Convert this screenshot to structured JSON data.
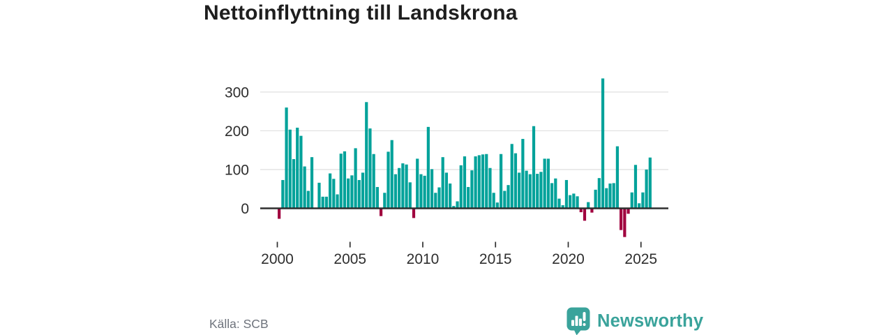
{
  "title": "Nettoinflyttning till Landskrona",
  "footer": {
    "source_label": "Källa: SCB",
    "logo_text": "Newsworthy"
  },
  "chart_data": {
    "type": "bar",
    "title": "Nettoinflyttning till Landskrona",
    "xlabel": "",
    "ylabel": "",
    "x_unit": "quarter",
    "start": {
      "year": 2000,
      "quarter": 1
    },
    "end": {
      "year": 2025,
      "quarter": 3
    },
    "values": [
      -27,
      73,
      260,
      203,
      127,
      208,
      187,
      108,
      45,
      132,
      0,
      66,
      30,
      30,
      90,
      76,
      36,
      141,
      147,
      77,
      85,
      155,
      73,
      92,
      274,
      206,
      140,
      55,
      -20,
      40,
      146,
      176,
      88,
      104,
      116,
      113,
      67,
      -25,
      128,
      88,
      84,
      210,
      101,
      40,
      54,
      132,
      92,
      64,
      6,
      18,
      111,
      134,
      55,
      98,
      134,
      137,
      139,
      140,
      104,
      40,
      15,
      140,
      45,
      60,
      166,
      142,
      92,
      179,
      97,
      88,
      212,
      89,
      94,
      128,
      128,
      65,
      77,
      25,
      8,
      73,
      34,
      38,
      31,
      -10,
      -32,
      16,
      -11,
      48,
      78,
      335,
      52,
      64,
      65,
      160,
      -56,
      -74,
      -14,
      41,
      112,
      13,
      41,
      100,
      131
    ],
    "x_tick_years": [
      2000,
      2005,
      2010,
      2015,
      2020,
      2025
    ],
    "y_ticks": [
      0,
      100,
      200,
      300
    ],
    "ylim": [
      -90,
      345
    ],
    "grid": "horizontal",
    "legend": "none",
    "positive_color": "#00a29a",
    "negative_color": "#a0003e",
    "axis_text_color": "#2e2e2e",
    "gridline_color": "#e1e1e1",
    "baseline_color": "#2e2e2e"
  }
}
